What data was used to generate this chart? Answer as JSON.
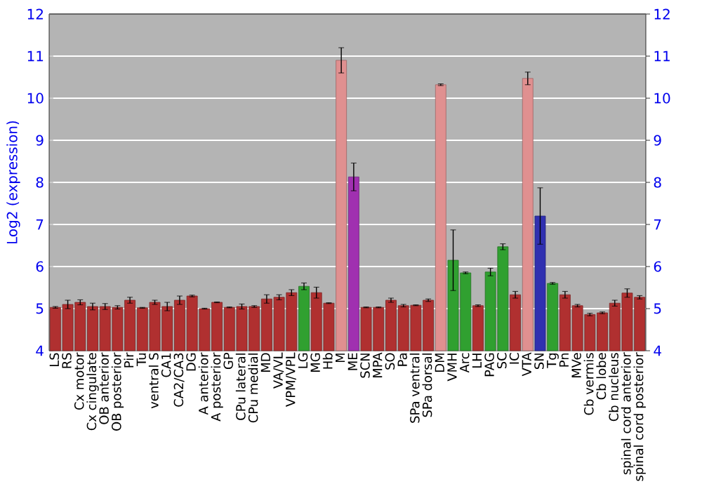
{
  "chart_data": {
    "type": "bar",
    "ylabel": "Log2 (expression)",
    "categories": [
      "LS",
      "RS",
      "Cx motor",
      "Cx cingulate",
      "OB anterior",
      "OB posterior",
      "Pir",
      "Tu",
      "ventral S",
      "CA1",
      "CA2/CA3",
      "DG",
      "A anterior",
      "A posterior",
      "GP",
      "CPu lateral",
      "CPu medial",
      "MD",
      "VA/VL",
      "VPM/VPL",
      "LG",
      "MG",
      "Hb",
      "M",
      "ME",
      "SCN",
      "MPA",
      "SO",
      "Pa",
      "SPa ventral",
      "SPa dorsal",
      "DM",
      "VMH",
      "Arc",
      "LH",
      "PAG",
      "SC",
      "IC",
      "VTA",
      "SN",
      "Tg",
      "Pn",
      "MVe",
      "Cb vermis",
      "Cb lobe",
      "Cb nucleus",
      "spinal cord anterior",
      "spinal cord posterior"
    ],
    "values": [
      5.03,
      5.1,
      5.15,
      5.05,
      5.05,
      5.03,
      5.2,
      5.02,
      5.15,
      5.05,
      5.2,
      5.3,
      5.0,
      5.15,
      5.03,
      5.05,
      5.05,
      5.23,
      5.27,
      5.38,
      5.53,
      5.38,
      5.13,
      10.9,
      8.13,
      5.03,
      5.03,
      5.2,
      5.07,
      5.08,
      5.2,
      10.32,
      6.15,
      5.85,
      5.07,
      5.87,
      6.47,
      5.33,
      10.47,
      7.2,
      5.6,
      5.33,
      5.07,
      4.86,
      4.9,
      5.13,
      5.37,
      5.27
    ],
    "errors": [
      0.02,
      0.1,
      0.06,
      0.08,
      0.07,
      0.04,
      0.07,
      0.01,
      0.05,
      0.1,
      0.1,
      0.02,
      0.01,
      0.01,
      0.01,
      0.06,
      0.02,
      0.1,
      0.06,
      0.07,
      0.08,
      0.13,
      0.01,
      0.3,
      0.33,
      0.01,
      0.01,
      0.05,
      0.03,
      0.01,
      0.03,
      0.02,
      0.72,
      0.02,
      0.02,
      0.09,
      0.07,
      0.08,
      0.15,
      0.67,
      0.02,
      0.08,
      0.03,
      0.03,
      0.02,
      0.07,
      0.1,
      0.04
    ],
    "colors": [
      "#b03030",
      "#b03030",
      "#b03030",
      "#b03030",
      "#b03030",
      "#b03030",
      "#b03030",
      "#b03030",
      "#b03030",
      "#b03030",
      "#b03030",
      "#b03030",
      "#b03030",
      "#b03030",
      "#b03030",
      "#b03030",
      "#b03030",
      "#b03030",
      "#b03030",
      "#b03030",
      "#30a030",
      "#b03030",
      "#b03030",
      "#e09090",
      "#a030b0",
      "#b03030",
      "#b03030",
      "#b03030",
      "#b03030",
      "#b03030",
      "#b03030",
      "#e09090",
      "#30a030",
      "#30a030",
      "#b03030",
      "#30a030",
      "#30a030",
      "#b03030",
      "#e09090",
      "#3030b0",
      "#30a030",
      "#b03030",
      "#b03030",
      "#b03030",
      "#b03030",
      "#b03030",
      "#b03030",
      "#b03030"
    ],
    "ylim": [
      4,
      12
    ],
    "yticks": [
      4,
      5,
      6,
      7,
      8,
      9,
      10,
      11,
      12
    ],
    "y2lim": [
      4,
      12
    ],
    "y2ticks": [
      4,
      5,
      6,
      7,
      8,
      9,
      10,
      11,
      12
    ],
    "grid": "y"
  }
}
